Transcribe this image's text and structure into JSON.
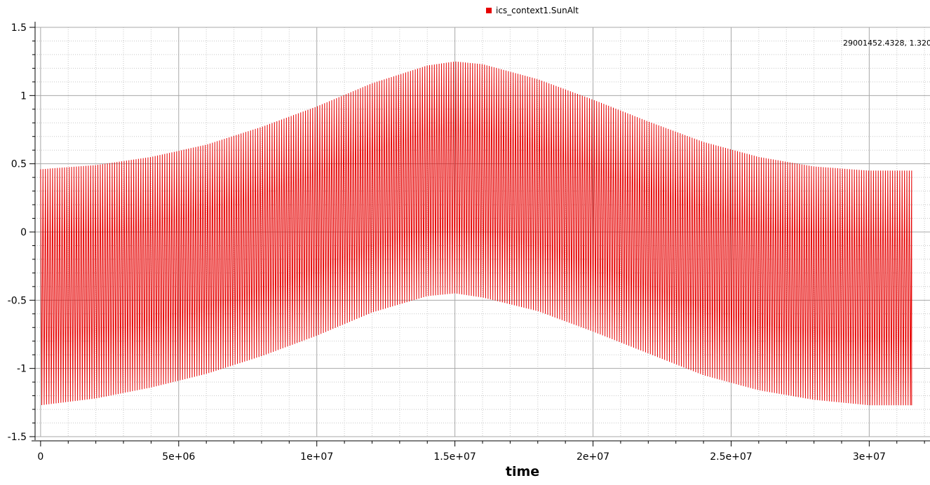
{
  "legend": {
    "label": "ics_context1.SunAlt",
    "color": "#e60000"
  },
  "readout": "29001452.4328, 1.320",
  "chart_data": {
    "type": "line",
    "title": "",
    "xlabel": "time",
    "ylabel": "",
    "xlim": [
      -200000,
      32200000
    ],
    "ylim": [
      -1.5,
      1.5
    ],
    "x_ticks": [
      0,
      5000000,
      10000000,
      15000000,
      20000000,
      25000000,
      30000000
    ],
    "x_tick_labels": [
      "0",
      "5e+06",
      "1e+07",
      "1.5e+07",
      "2e+07",
      "2.5e+07",
      "3e+07"
    ],
    "y_ticks": [
      1.5,
      1,
      0.5,
      0,
      -0.5,
      -1,
      -1.5
    ],
    "y_tick_labels": [
      "1.5",
      "1",
      "0.5",
      "0",
      "-0.5",
      "-1",
      "-1.5"
    ],
    "grid": true,
    "legend_position": "top-center",
    "series": [
      {
        "name": "ics_context1.SunAlt",
        "color": "#e60000",
        "x_range": [
          0,
          31536000
        ],
        "period": 86400,
        "envelope_x": [
          0,
          2000000,
          4000000,
          6000000,
          8000000,
          10000000,
          12000000,
          14000000,
          15000000,
          16000000,
          18000000,
          20000000,
          22000000,
          24000000,
          26000000,
          28000000,
          30000000,
          31536000
        ],
        "upper": [
          0.46,
          0.49,
          0.55,
          0.64,
          0.77,
          0.92,
          1.09,
          1.22,
          1.25,
          1.23,
          1.12,
          0.97,
          0.81,
          0.66,
          0.55,
          0.48,
          0.45,
          0.45
        ],
        "lower": [
          -1.27,
          -1.22,
          -1.14,
          -1.04,
          -0.91,
          -0.76,
          -0.59,
          -0.47,
          -0.45,
          -0.48,
          -0.58,
          -0.73,
          -0.89,
          -1.05,
          -1.16,
          -1.23,
          -1.27,
          -1.27
        ]
      }
    ]
  }
}
